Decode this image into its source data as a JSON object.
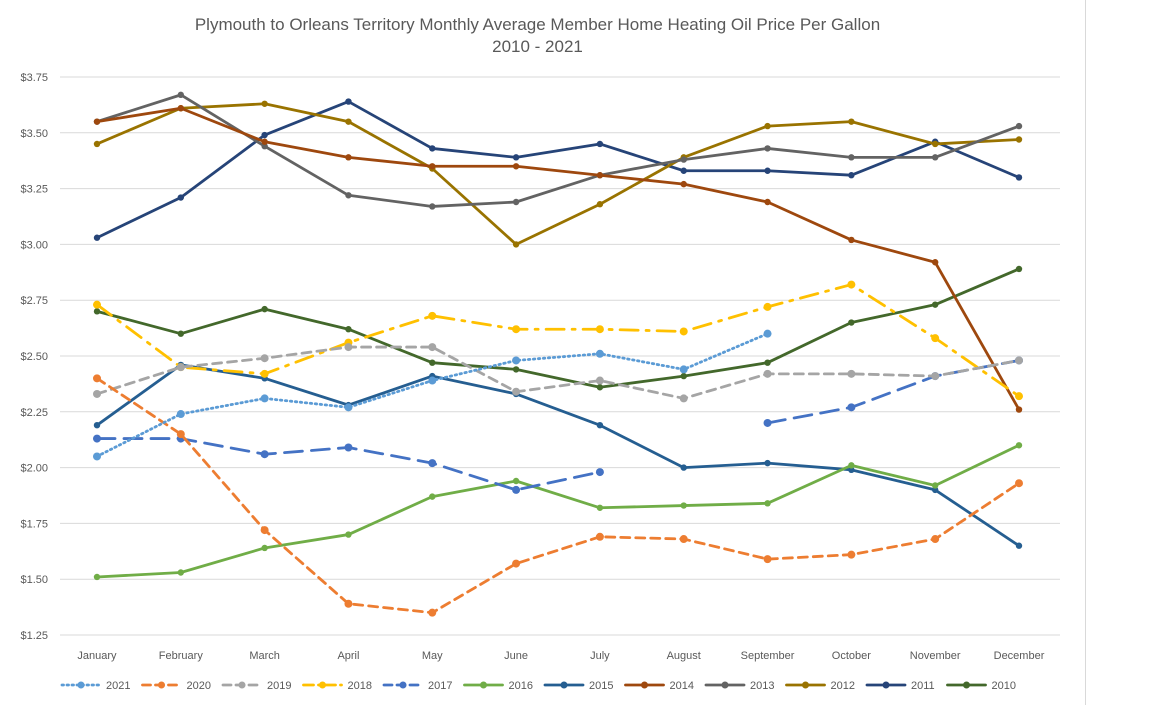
{
  "chart_data": {
    "type": "line",
    "title": "Plymouth to Orleans Territory Monthly Average Member Home Heating Oil Price Per Gallon",
    "subtitle": "2010 - 2021",
    "xlabel": "",
    "ylabel": "",
    "ylim": [
      1.25,
      3.75
    ],
    "yticks": [
      "$3.75",
      "$3.50",
      "$3.25",
      "$3.00",
      "$2.75",
      "$2.50",
      "$2.25",
      "$2.00",
      "$1.75",
      "$1.50",
      "$1.25"
    ],
    "ytick_values": [
      3.75,
      3.5,
      3.25,
      3.0,
      2.75,
      2.5,
      2.25,
      2.0,
      1.75,
      1.5,
      1.25
    ],
    "grid": true,
    "legend_position": "bottom",
    "categories": [
      "January",
      "February",
      "March",
      "April",
      "May",
      "June",
      "July",
      "August",
      "September",
      "October",
      "November",
      "December"
    ],
    "series": [
      {
        "name": "2021",
        "color": "#5B9BD5",
        "style": "dot",
        "values": [
          2.05,
          2.24,
          2.31,
          2.27,
          2.39,
          2.48,
          2.51,
          2.44,
          2.6,
          null,
          null,
          null
        ]
      },
      {
        "name": "2020",
        "color": "#ED7D31",
        "style": "dash",
        "values": [
          2.4,
          2.15,
          1.72,
          1.39,
          1.35,
          1.57,
          1.69,
          1.68,
          1.59,
          1.61,
          1.68,
          1.93
        ]
      },
      {
        "name": "2019",
        "color": "#A5A5A5",
        "style": "dash",
        "values": [
          2.33,
          2.45,
          2.49,
          2.54,
          2.54,
          2.34,
          2.39,
          2.31,
          2.42,
          2.42,
          2.41,
          2.48
        ]
      },
      {
        "name": "2018",
        "color": "#FFC000",
        "style": "longdashdot",
        "values": [
          2.73,
          2.45,
          2.42,
          2.56,
          2.68,
          2.62,
          2.62,
          2.61,
          2.72,
          2.82,
          2.58,
          2.32
        ]
      },
      {
        "name": "2017",
        "color": "#4472C4",
        "style": "longdash",
        "values": [
          2.13,
          2.13,
          2.06,
          2.09,
          2.02,
          1.9,
          1.98,
          null,
          2.2,
          2.27,
          2.41,
          2.48
        ]
      },
      {
        "name": "2016",
        "color": "#70AD47",
        "style": "solid",
        "values": [
          1.51,
          1.53,
          1.64,
          1.7,
          1.87,
          1.94,
          1.82,
          1.83,
          1.84,
          2.01,
          1.92,
          2.1
        ]
      },
      {
        "name": "2015",
        "color": "#255E91",
        "style": "solid",
        "values": [
          2.19,
          2.46,
          2.4,
          2.28,
          2.41,
          2.33,
          2.19,
          2.0,
          2.02,
          1.99,
          1.9,
          1.65
        ]
      },
      {
        "name": "2014",
        "color": "#9E480E",
        "style": "solid",
        "values": [
          3.55,
          3.61,
          3.46,
          3.39,
          3.35,
          3.35,
          3.31,
          3.27,
          3.19,
          3.02,
          2.92,
          2.26
        ]
      },
      {
        "name": "2013",
        "color": "#636363",
        "style": "solid",
        "values": [
          3.55,
          3.67,
          3.44,
          3.22,
          3.17,
          3.19,
          3.31,
          3.38,
          3.43,
          3.39,
          3.39,
          3.53
        ]
      },
      {
        "name": "2012",
        "color": "#997300",
        "style": "solid",
        "values": [
          3.45,
          3.61,
          3.63,
          3.55,
          3.34,
          3.0,
          3.18,
          3.39,
          3.53,
          3.55,
          3.45,
          3.47
        ]
      },
      {
        "name": "2011",
        "color": "#264478",
        "style": "solid",
        "values": [
          3.03,
          3.21,
          3.49,
          3.64,
          3.43,
          3.39,
          3.45,
          3.33,
          3.33,
          3.31,
          3.46,
          3.3
        ]
      },
      {
        "name": "2010",
        "color": "#43682B",
        "style": "solid",
        "values": [
          2.7,
          2.6,
          2.71,
          2.62,
          2.47,
          2.44,
          2.36,
          2.41,
          2.47,
          2.65,
          2.73,
          2.89
        ]
      }
    ]
  }
}
